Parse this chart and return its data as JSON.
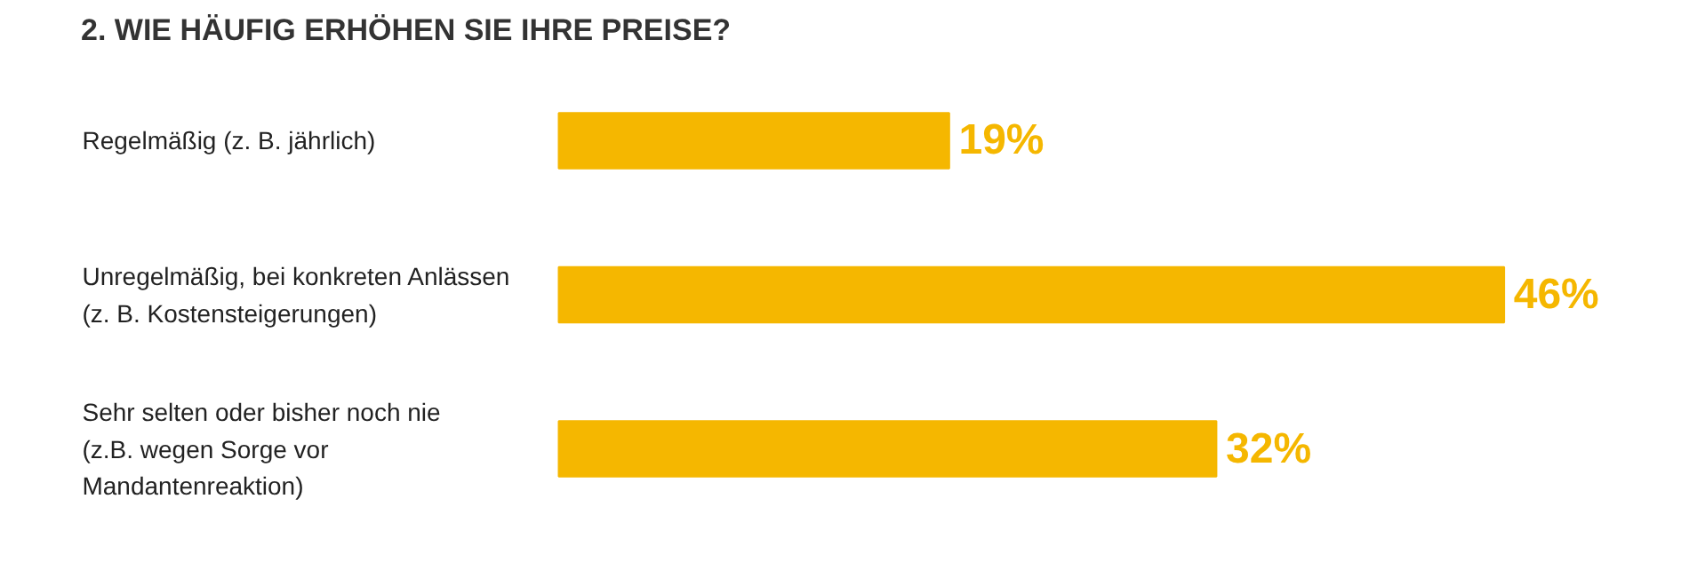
{
  "chart_data": {
    "type": "bar",
    "orientation": "horizontal",
    "title": "2. WIE HÄUFIG ERHÖHEN SIE IHRE PREISE?",
    "categories": [
      "Regelmäßig (z. B. jährlich)",
      "Unregelmäßig, bei konkreten Anlässen (z. B. Kostensteigerungen)",
      "Sehr selten oder bisher noch nie (z.B. wegen Sorge vor Mandantenreaktion)"
    ],
    "values": [
      19,
      46,
      32
    ],
    "color": "#f5b700",
    "value_labels": [
      "19%",
      "46%",
      "32%"
    ],
    "grid": false
  }
}
